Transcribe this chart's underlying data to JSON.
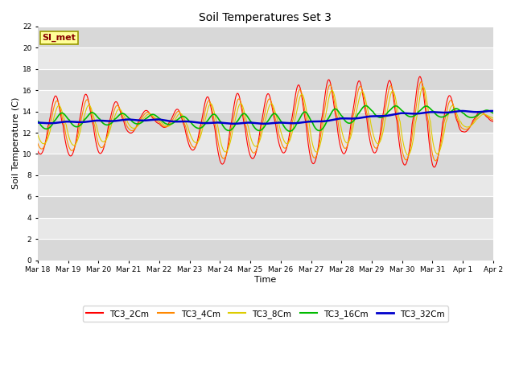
{
  "title": "Soil Temperatures Set 3",
  "xlabel": "Time",
  "ylabel": "Soil Temperature (C)",
  "ylim": [
    0,
    22
  ],
  "yticks": [
    0,
    2,
    4,
    6,
    8,
    10,
    12,
    14,
    16,
    18,
    20,
    22
  ],
  "bg_color": "#ffffff",
  "plot_bg_color": "#e8e8e8",
  "grid_color": "#ffffff",
  "series_colors": {
    "TC3_2Cm": "#ff0000",
    "TC3_4Cm": "#ff8800",
    "TC3_8Cm": "#ddcc00",
    "TC3_16Cm": "#00bb00",
    "TC3_32Cm": "#0000cc"
  },
  "annotation_text": "SI_met",
  "annotation_bg": "#ffff99",
  "annotation_border": "#999900",
  "annotation_text_color": "#880000",
  "x_tick_labels": [
    "Mar 18",
    "Mar 19",
    "Mar 20",
    "Mar 21",
    "Mar 22",
    "Mar 23",
    "Mar 24",
    "Mar 25",
    "Mar 26",
    "Mar 27",
    "Mar 28",
    "Mar 29",
    "Mar 30",
    "Mar 31",
    "Apr 1",
    "Apr 2"
  ],
  "figsize": [
    6.4,
    4.8
  ],
  "dpi": 100,
  "band_colors": [
    "#d8d8d8",
    "#e8e8e8"
  ]
}
